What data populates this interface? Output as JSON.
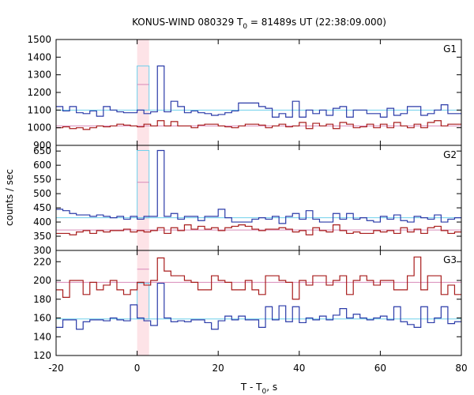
{
  "chart_data": {
    "type": "line",
    "title_main": "KONUS-WIND 080329 T",
    "title_sub": "0",
    "title_rest": " = 81489s UT (22:38:09.000)",
    "xlabel_main": "T - T",
    "xlabel_sub": "0",
    "xlabel_rest": ", s",
    "ylabel": "counts / sec",
    "xlim": [
      -20,
      80
    ],
    "xticks": [
      "-20",
      "0",
      "20",
      "40",
      "60",
      "80"
    ],
    "highlight_interval": [
      0,
      2.944
    ],
    "colors": {
      "blue": "#2a3aa8",
      "red": "#a81c1c",
      "cyan": "#6fd0ec",
      "pink": "#d88ab8",
      "band": "#fde3e7"
    },
    "panels": [
      {
        "name": "G1",
        "ylim": [
          900,
          1500
        ],
        "yticks": [
          "900",
          "1000",
          "1100",
          "1200",
          "1300",
          "1400",
          "1500"
        ],
        "blue_background": 1100,
        "red_background": 1010,
        "blue_series": [
          1120,
          1095,
          1120,
          1085,
          1080,
          1095,
          1065,
          1120,
          1100,
          1090,
          1085,
          1085,
          1100,
          1080,
          1090,
          1350,
          1090,
          1150,
          1120,
          1085,
          1095,
          1085,
          1080,
          1070,
          1075,
          1085,
          1095,
          1140,
          1140,
          1140,
          1120,
          1110,
          1060,
          1080,
          1060,
          1150,
          1060,
          1100,
          1080,
          1100,
          1070,
          1110,
          1120,
          1060,
          1100,
          1100,
          1080,
          1080,
          1060,
          1110,
          1070,
          1080,
          1120,
          1120,
          1070,
          1080,
          1100,
          1130,
          1080,
          1080
        ],
        "red_series": [
          1000,
          1005,
          995,
          1000,
          990,
          1000,
          1010,
          1005,
          1010,
          1020,
          1015,
          1010,
          1005,
          1020,
          1010,
          1040,
          1010,
          1035,
          1010,
          1010,
          1000,
          1015,
          1020,
          1020,
          1010,
          1005,
          1000,
          1010,
          1020,
          1020,
          1015,
          1000,
          1010,
          1020,
          1005,
          1010,
          1030,
          995,
          1025,
          1010,
          1020,
          995,
          1030,
          1020,
          1000,
          1005,
          1020,
          1000,
          1020,
          1000,
          1030,
          1010,
          1000,
          1020,
          1000,
          1030,
          1040,
          1010,
          1020,
          1020
        ],
        "red_peak_level": 1245
      },
      {
        "name": "G2",
        "ylim": [
          300,
          670
        ],
        "yticks": [
          "300",
          "350",
          "400",
          "450",
          "500",
          "550",
          "600",
          "650"
        ],
        "blue_background": 415,
        "red_background": 372,
        "blue_series": [
          445,
          440,
          430,
          425,
          425,
          420,
          425,
          420,
          415,
          420,
          410,
          420,
          410,
          420,
          420,
          652,
          420,
          430,
          410,
          420,
          420,
          405,
          420,
          420,
          445,
          415,
          400,
          400,
          400,
          410,
          415,
          410,
          420,
          395,
          420,
          430,
          410,
          440,
          410,
          400,
          400,
          430,
          410,
          430,
          410,
          415,
          405,
          400,
          420,
          410,
          425,
          405,
          400,
          420,
          415,
          410,
          425,
          400,
          410,
          415
        ],
        "red_series": [
          360,
          360,
          355,
          365,
          370,
          360,
          370,
          365,
          370,
          370,
          375,
          365,
          370,
          365,
          370,
          380,
          360,
          380,
          370,
          390,
          375,
          385,
          375,
          380,
          370,
          380,
          385,
          390,
          385,
          375,
          370,
          375,
          375,
          380,
          375,
          365,
          370,
          355,
          380,
          370,
          365,
          390,
          370,
          360,
          365,
          360,
          360,
          370,
          365,
          370,
          360,
          380,
          365,
          375,
          360,
          380,
          385,
          370,
          360,
          365
        ],
        "red_peak_level": 540
      },
      {
        "name": "G3",
        "ylim": [
          120,
          232
        ],
        "yticks": [
          "120",
          "140",
          "160",
          "180",
          "200",
          "220"
        ],
        "blue_background": 159,
        "red_background": 198,
        "blue_series": [
          150,
          158,
          158,
          148,
          156,
          158,
          158,
          157,
          160,
          158,
          157,
          174,
          160,
          157,
          152,
          197,
          160,
          156,
          157,
          156,
          158,
          158,
          155,
          148,
          157,
          162,
          158,
          162,
          158,
          158,
          150,
          172,
          158,
          173,
          156,
          172,
          155,
          160,
          158,
          162,
          158,
          163,
          170,
          160,
          164,
          160,
          158,
          160,
          162,
          158,
          172,
          156,
          153,
          150,
          172,
          155,
          160,
          172,
          154,
          156
        ],
        "red_series": [
          190,
          182,
          200,
          200,
          185,
          198,
          190,
          195,
          200,
          190,
          185,
          190,
          198,
          195,
          200,
          224,
          210,
          205,
          205,
          200,
          198,
          190,
          190,
          205,
          200,
          198,
          190,
          190,
          200,
          190,
          185,
          205,
          205,
          200,
          198,
          180,
          200,
          195,
          205,
          205,
          195,
          200,
          205,
          185,
          200,
          205,
          200,
          195,
          200,
          200,
          190,
          190,
          205,
          225,
          190,
          205,
          205,
          185,
          195,
          185
        ],
        "red_peak_level": 212
      }
    ]
  }
}
